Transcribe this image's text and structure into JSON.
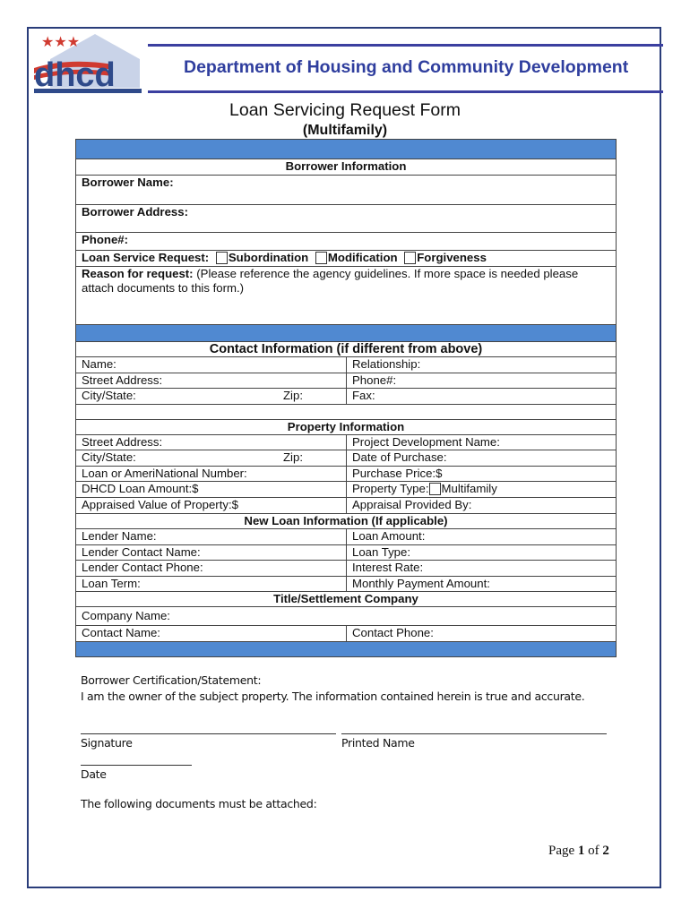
{
  "header": {
    "logo_text": "dhcd",
    "department": "Department of Housing and Community Development",
    "form_title": "Loan Servicing Request Form",
    "form_subtitle": "(Multifamily)"
  },
  "borrower": {
    "heading": "Borrower Information",
    "name": "Borrower Name:",
    "address": "Borrower Address:",
    "phone": "Phone#:",
    "request_label": "Loan Service Request:",
    "options": [
      "Subordination",
      "Modification",
      "Forgiveness"
    ],
    "reason_label": "Reason for request:",
    "reason_note": "(Please reference the agency guidelines. If more space is needed please attach documents to this form.)"
  },
  "contact": {
    "heading": "Contact Information (if different from above)",
    "name": "Name:",
    "relationship": "Relationship:",
    "street": "Street Address:",
    "phone": "Phone#:",
    "city": "City/State:",
    "zip": "Zip:",
    "fax": "Fax:"
  },
  "property": {
    "heading": "Property Information",
    "street": "Street Address:",
    "project": "Project Development Name:",
    "city": "City/State:",
    "zip": "Zip:",
    "date": "Date of Purchase:",
    "loan_number": "Loan or AmeriNational Number:",
    "price": "Purchase Price:$",
    "dhcd_amount": "DHCD Loan Amount:$",
    "type": "Property Type:",
    "type_option": "Multifamily",
    "appraised": "Appraised Value of Property:$",
    "appraisal_by": "Appraisal Provided By:"
  },
  "new_loan": {
    "heading": "New Loan Information (If applicable)",
    "lender": "Lender Name:",
    "amount": "Loan Amount:",
    "contact_name": "Lender Contact Name:",
    "loan_type": "Loan Type:",
    "contact_phone": "Lender Contact Phone:",
    "rate": "Interest Rate:",
    "term": "Loan Term:",
    "monthly": "Monthly Payment Amount:"
  },
  "title_co": {
    "heading": "Title/Settlement Company",
    "company": "Company Name:",
    "contact_name": "Contact Name:",
    "contact_phone": "Contact Phone:"
  },
  "footer": {
    "cert_heading": "Borrower Certification/Statement:",
    "cert_text": "I am the owner of the subject property. The information contained herein is true and accurate.",
    "signature": "Signature",
    "printed_name": "Printed Name",
    "date": "Date",
    "attached": "The following documents must be attached:",
    "page_prefix": "Page",
    "page_current": "1",
    "page_of": "of",
    "page_total": "2"
  },
  "colors": {
    "band": "#5089d1",
    "brand": "#2f3e9e",
    "logo_red": "#d03a30"
  }
}
